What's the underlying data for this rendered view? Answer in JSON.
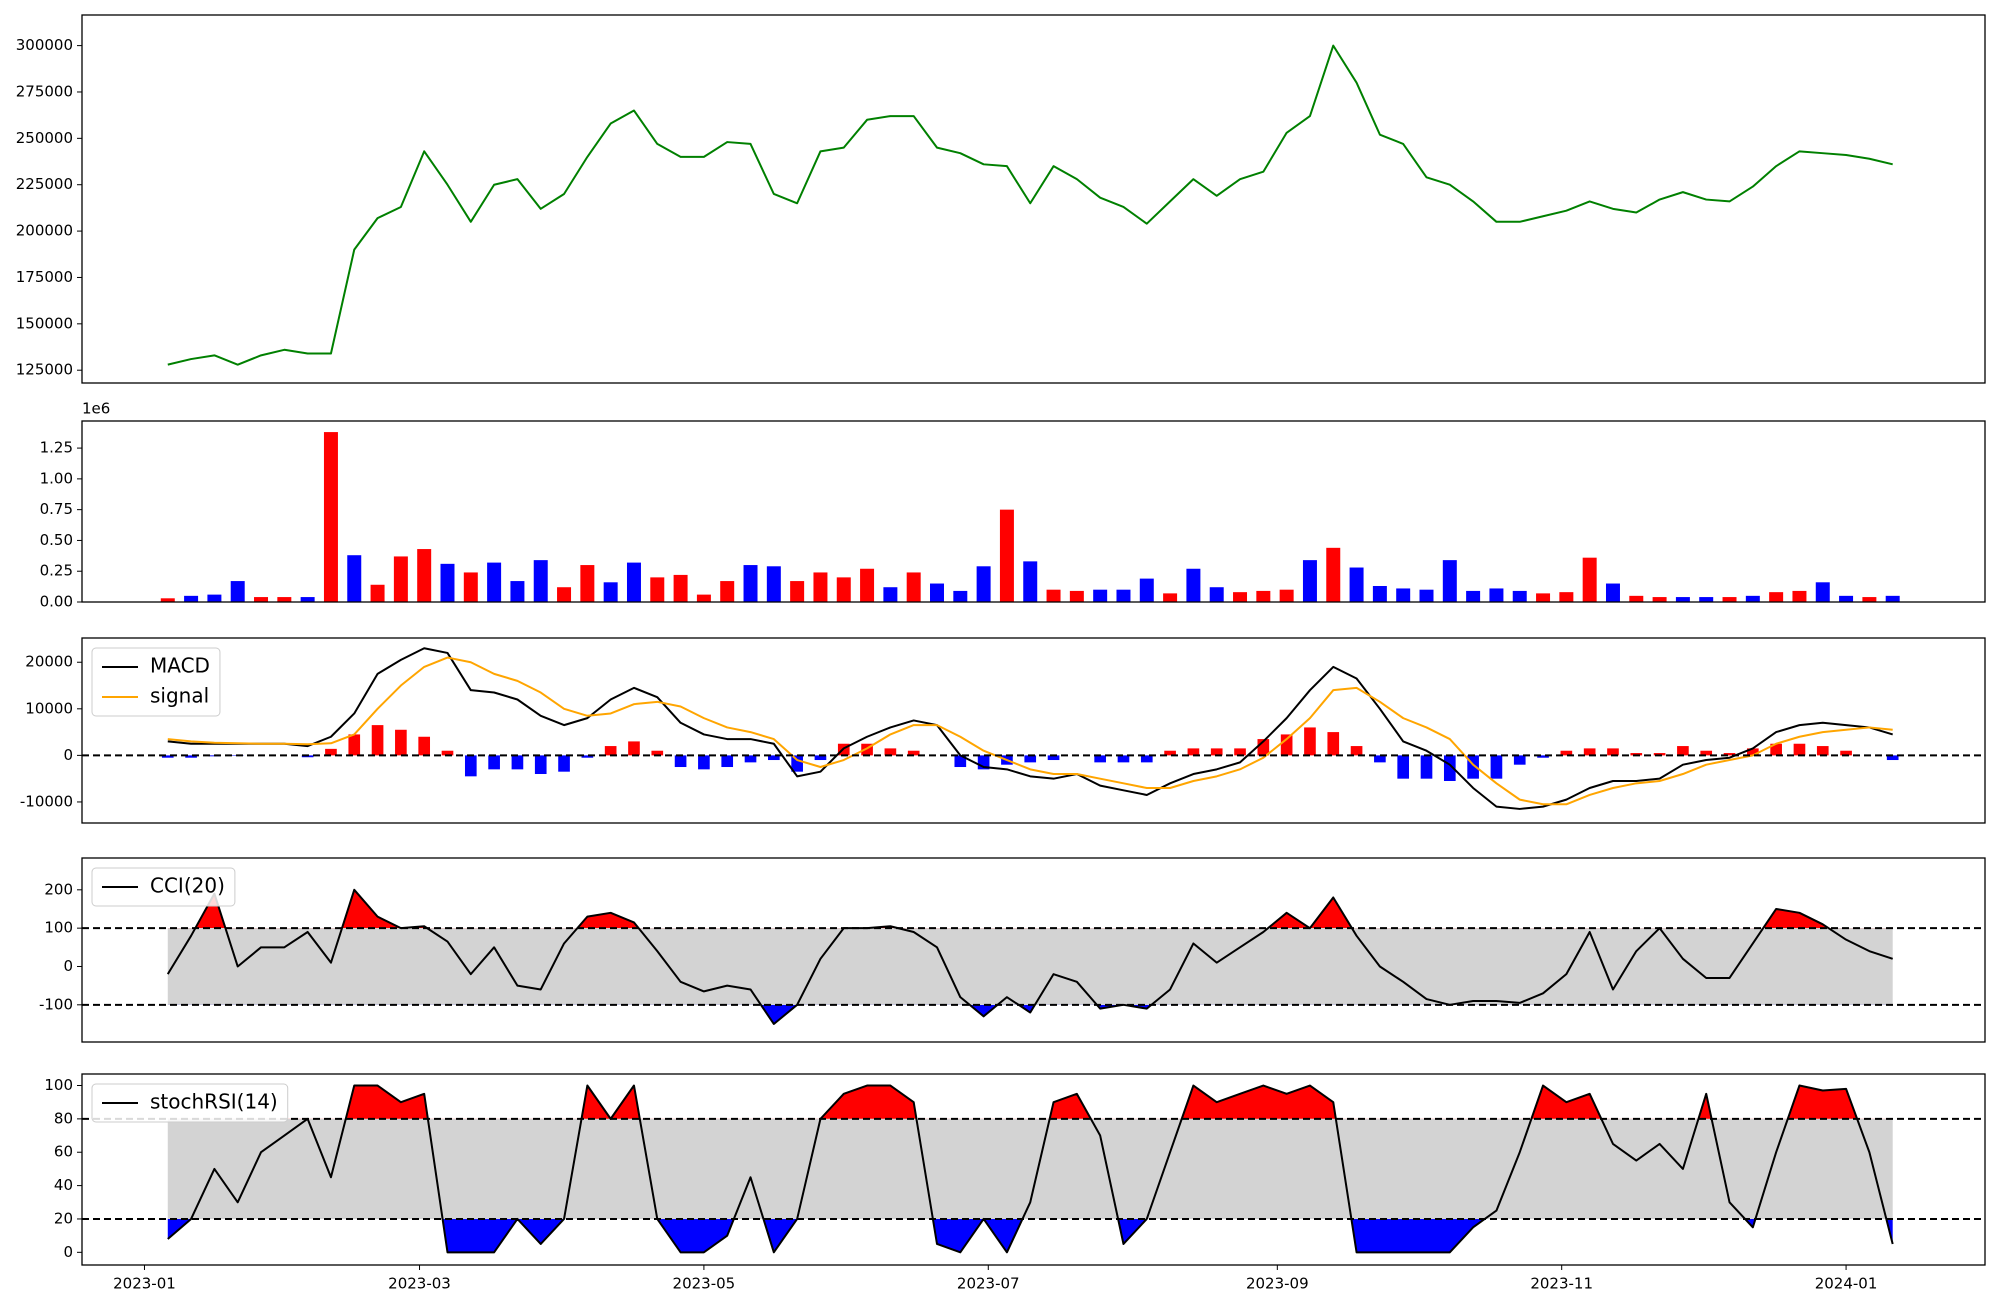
{
  "chart_data": [
    {
      "type": "line",
      "x": [
        5,
        10,
        15,
        20,
        25,
        30,
        35,
        40,
        45,
        50,
        55,
        60,
        65,
        70,
        75,
        80,
        85,
        90,
        95,
        100,
        105,
        110,
        115,
        120,
        125,
        130,
        135,
        140,
        145,
        150,
        155,
        160,
        165,
        170,
        175,
        180,
        185,
        190,
        195,
        200,
        205,
        210,
        215,
        220,
        225,
        230,
        235,
        240,
        245,
        250,
        255,
        260,
        265,
        270,
        275,
        280,
        285,
        290,
        295,
        300,
        305,
        310,
        315,
        320,
        325,
        330,
        335,
        340,
        345,
        350,
        355,
        360,
        365,
        370,
        375
      ],
      "series": [
        {
          "color": "green",
          "values": [
            128000,
            131000,
            133000,
            128000,
            133000,
            136000,
            134000,
            134000,
            190000,
            207000,
            213000,
            243000,
            225000,
            205000,
            225000,
            228000,
            212000,
            220000,
            240000,
            258000,
            265000,
            247000,
            240000,
            240000,
            248000,
            247000,
            220000,
            215000,
            243000,
            245000,
            260000,
            262000,
            262000,
            245000,
            242000,
            236000,
            235000,
            215000,
            235000,
            228000,
            218000,
            213000,
            204000,
            216000,
            228000,
            219000,
            228000,
            232000,
            253000,
            262000,
            300000,
            280000,
            252000,
            247000,
            229000,
            225000,
            216000,
            205000,
            205000,
            208000,
            211000,
            216000,
            212000,
            210000,
            217000,
            221000,
            217000,
            216000,
            224000,
            235000,
            243000,
            242000,
            241000,
            239000,
            236000
          ]
        }
      ],
      "xlim": [
        -13.4,
        394.8
      ],
      "ylim": [
        118100,
        316500
      ],
      "yticks": [
        125000,
        150000,
        175000,
        200000,
        225000,
        250000,
        275000,
        300000
      ]
    },
    {
      "type": "bar",
      "x": [
        5,
        10,
        15,
        20,
        25,
        30,
        35,
        40,
        45,
        50,
        55,
        60,
        65,
        70,
        75,
        80,
        85,
        90,
        95,
        100,
        105,
        110,
        115,
        120,
        125,
        130,
        135,
        140,
        145,
        150,
        155,
        160,
        165,
        170,
        175,
        180,
        185,
        190,
        195,
        200,
        205,
        210,
        215,
        220,
        225,
        230,
        235,
        240,
        245,
        250,
        255,
        260,
        265,
        270,
        275,
        280,
        285,
        290,
        295,
        300,
        305,
        310,
        315,
        320,
        325,
        330,
        335,
        340,
        345,
        350,
        355,
        360,
        365,
        370,
        375
      ],
      "values": [
        0.03,
        0.05,
        0.06,
        0.17,
        0.04,
        0.04,
        0.04,
        1.38,
        0.38,
        0.14,
        0.37,
        0.43,
        0.31,
        0.24,
        0.32,
        0.17,
        0.34,
        0.12,
        0.3,
        0.16,
        0.32,
        0.2,
        0.22,
        0.06,
        0.17,
        0.3,
        0.29,
        0.17,
        0.24,
        0.2,
        0.27,
        0.12,
        0.24,
        0.15,
        0.09,
        0.29,
        0.75,
        0.33,
        0.1,
        0.09,
        0.1,
        0.1,
        0.19,
        0.07,
        0.27,
        0.12,
        0.08,
        0.09,
        0.1,
        0.34,
        0.44,
        0.28,
        0.13,
        0.11,
        0.1,
        0.34,
        0.09,
        0.11,
        0.09,
        0.07,
        0.08,
        0.36,
        0.15,
        0.05,
        0.04,
        0.04,
        0.04,
        0.04,
        0.05,
        0.08,
        0.09,
        0.16,
        0.05,
        0.04,
        0.05
      ],
      "colors": [
        "red",
        "blue",
        "blue",
        "blue",
        "red",
        "red",
        "blue",
        "red",
        "blue",
        "red",
        "red",
        "red",
        "blue",
        "red",
        "blue",
        "blue",
        "blue",
        "red",
        "red",
        "blue",
        "blue",
        "red",
        "red",
        "red",
        "red",
        "blue",
        "blue",
        "red",
        "red",
        "red",
        "red",
        "blue",
        "red",
        "blue",
        "blue",
        "blue",
        "red",
        "blue",
        "red",
        "red",
        "blue",
        "blue",
        "blue",
        "red",
        "blue",
        "blue",
        "red",
        "red",
        "red",
        "blue",
        "red",
        "blue",
        "blue",
        "blue",
        "blue",
        "blue",
        "blue",
        "blue",
        "blue",
        "red",
        "red",
        "red",
        "blue",
        "red",
        "red",
        "blue",
        "blue",
        "red",
        "blue",
        "red",
        "red",
        "blue",
        "blue",
        "red",
        "blue"
      ],
      "offset_label": "1e6",
      "xlim": [
        -13.4,
        394.8
      ],
      "ylim": [
        0,
        1.47
      ],
      "yticks": [
        {
          "value": 0,
          "label": "0.00"
        },
        0.25,
        {
          "value": 0.5,
          "label": "0.50"
        },
        0.75,
        {
          "value": 1,
          "label": "1.00"
        },
        1.25
      ]
    },
    {
      "type": "combo",
      "x": [
        5,
        10,
        15,
        20,
        25,
        30,
        35,
        40,
        45,
        50,
        55,
        60,
        65,
        70,
        75,
        80,
        85,
        90,
        95,
        100,
        105,
        110,
        115,
        120,
        125,
        130,
        135,
        140,
        145,
        150,
        155,
        160,
        165,
        170,
        175,
        180,
        185,
        190,
        195,
        200,
        205,
        210,
        215,
        220,
        225,
        230,
        235,
        240,
        245,
        250,
        255,
        260,
        265,
        270,
        275,
        280,
        285,
        290,
        295,
        300,
        305,
        310,
        315,
        320,
        325,
        330,
        335,
        340,
        345,
        350,
        355,
        360,
        365,
        370,
        375
      ],
      "series": [
        {
          "kind": "bar",
          "pos_color": "red",
          "neg_color": "blue",
          "values": [
            -500,
            -500,
            -200,
            -100,
            0,
            0,
            -400,
            1400,
            4500,
            6500,
            5500,
            4000,
            1000,
            -4500,
            -3000,
            -3000,
            -4000,
            -3500,
            -500,
            2000,
            3000,
            1000,
            -2500,
            -3000,
            -2500,
            -1500,
            -1000,
            -3500,
            -1000,
            2500,
            2500,
            1500,
            1000,
            0,
            -2500,
            -3000,
            -2000,
            -1500,
            -1000,
            0,
            -1500,
            -1500,
            -1500,
            1000,
            1500,
            1500,
            1500,
            3500,
            4500,
            6000,
            5000,
            2000,
            -1500,
            -5000,
            -5000,
            -5500,
            -5000,
            -5000,
            -2000,
            -500,
            1000,
            1500,
            1500,
            500,
            500,
            2000,
            1000,
            500,
            1500,
            2500,
            2500,
            2000,
            1000,
            0,
            -1000
          ]
        },
        {
          "name": "MACD",
          "kind": "line",
          "color": "black",
          "values": [
            3000,
            2500,
            2500,
            2500,
            2500,
            2500,
            2000,
            4000,
            9000,
            17500,
            20500,
            23000,
            22000,
            14000,
            13500,
            12000,
            8500,
            6500,
            8000,
            12000,
            14500,
            12500,
            7000,
            4500,
            3500,
            3500,
            2500,
            -4500,
            -3500,
            1500,
            4000,
            6000,
            7500,
            6500,
            0,
            -2500,
            -3000,
            -4500,
            -5000,
            -4000,
            -6500,
            -7500,
            -8500,
            -6000,
            -4000,
            -3000,
            -1500,
            3000,
            8000,
            14000,
            19000,
            16500,
            10000,
            3000,
            1000,
            -2000,
            -7000,
            -11000,
            -11500,
            -11000,
            -9500,
            -7000,
            -5500,
            -5500,
            -5000,
            -2000,
            -1000,
            -500,
            1500,
            5000,
            6500,
            7000,
            6500,
            6000,
            4500
          ]
        },
        {
          "name": "signal",
          "kind": "line",
          "color": "orange",
          "values": [
            3500,
            3000,
            2700,
            2600,
            2500,
            2500,
            2400,
            2600,
            4500,
            10000,
            15000,
            19000,
            21000,
            20000,
            17500,
            16000,
            13500,
            10000,
            8500,
            9000,
            11000,
            11500,
            10500,
            8000,
            6000,
            5000,
            3500,
            -1000,
            -2500,
            -1000,
            1500,
            4500,
            6500,
            6500,
            4000,
            1000,
            -1000,
            -3000,
            -4000,
            -4000,
            -5000,
            -6000,
            -7000,
            -7000,
            -5500,
            -4500,
            -3000,
            -500,
            3500,
            8000,
            14000,
            14500,
            11500,
            8000,
            6000,
            3500,
            -2000,
            -6000,
            -9500,
            -10500,
            -10500,
            -8500,
            -7000,
            -6000,
            -5500,
            -4000,
            -2000,
            -1000,
            0,
            2500,
            4000,
            5000,
            5500,
            6000,
            5500
          ]
        }
      ],
      "hlines": [
        0
      ],
      "legend": "upper left",
      "xlim": [
        -13.4,
        394.8
      ],
      "ylim": [
        -14520,
        25205
      ],
      "yticks": [
        -10000,
        0,
        10000,
        20000
      ]
    },
    {
      "type": "band",
      "x": [
        5,
        10,
        15,
        20,
        25,
        30,
        35,
        40,
        45,
        50,
        55,
        60,
        65,
        70,
        75,
        80,
        85,
        90,
        95,
        100,
        105,
        110,
        115,
        120,
        125,
        130,
        135,
        140,
        145,
        150,
        155,
        160,
        165,
        170,
        175,
        180,
        185,
        190,
        195,
        200,
        205,
        210,
        215,
        220,
        225,
        230,
        235,
        240,
        245,
        250,
        255,
        260,
        265,
        270,
        275,
        280,
        285,
        290,
        295,
        300,
        305,
        310,
        315,
        320,
        325,
        330,
        335,
        340,
        345,
        350,
        355,
        360,
        365,
        370,
        375
      ],
      "series": [
        {
          "name": "CCI(20)",
          "color": "black",
          "values": [
            -20,
            80,
            190,
            0,
            50,
            50,
            90,
            10,
            200,
            130,
            100,
            105,
            65,
            -20,
            50,
            -50,
            -60,
            60,
            130,
            140,
            115,
            40,
            -40,
            -65,
            -50,
            -60,
            -150,
            -100,
            20,
            100,
            100,
            105,
            90,
            50,
            -80,
            -130,
            -80,
            -120,
            -20,
            -40,
            -110,
            -100,
            -110,
            -60,
            60,
            10,
            50,
            90,
            140,
            100,
            180,
            80,
            0,
            -40,
            -85,
            -100,
            -90,
            -90,
            -95,
            -70,
            -20,
            90,
            -60,
            40,
            100,
            20,
            -30,
            -30,
            60,
            150,
            140,
            110,
            70,
            40,
            20
          ]
        }
      ],
      "bounds": [
        -100,
        100
      ],
      "band_color": "lightgray",
      "upper_color": "red",
      "lower_color": "blue",
      "legend": "upper left",
      "xlim": [
        -13.4,
        394.8
      ],
      "ylim": [
        -197,
        283
      ],
      "yticks": [
        -100,
        0,
        100,
        200
      ]
    },
    {
      "type": "band",
      "x": [
        5,
        10,
        15,
        20,
        25,
        30,
        35,
        40,
        45,
        50,
        55,
        60,
        65,
        70,
        75,
        80,
        85,
        90,
        95,
        100,
        105,
        110,
        115,
        120,
        125,
        130,
        135,
        140,
        145,
        150,
        155,
        160,
        165,
        170,
        175,
        180,
        185,
        190,
        195,
        200,
        205,
        210,
        215,
        220,
        225,
        230,
        235,
        240,
        245,
        250,
        255,
        260,
        265,
        270,
        275,
        280,
        285,
        290,
        295,
        300,
        305,
        310,
        315,
        320,
        325,
        330,
        335,
        340,
        345,
        350,
        355,
        360,
        365,
        370,
        375
      ],
      "series": [
        {
          "name": "stochRSI(14)",
          "color": "black",
          "values": [
            8,
            20,
            50,
            30,
            60,
            70,
            80,
            45,
            100,
            100,
            90,
            95,
            0,
            0,
            0,
            20,
            5,
            20,
            100,
            80,
            100,
            20,
            0,
            0,
            10,
            45,
            0,
            20,
            80,
            95,
            100,
            100,
            90,
            5,
            0,
            20,
            0,
            30,
            90,
            95,
            70,
            5,
            20,
            60,
            100,
            90,
            95,
            100,
            95,
            100,
            90,
            0,
            0,
            0,
            0,
            0,
            15,
            25,
            60,
            100,
            90,
            95,
            65,
            55,
            65,
            50,
            95,
            30,
            15,
            60,
            100,
            97,
            98,
            60,
            5
          ]
        }
      ],
      "bounds": [
        20,
        80
      ],
      "band_color": "lightgray",
      "upper_color": "red",
      "lower_color": "blue",
      "legend": "upper left",
      "xlim": [
        -13.4,
        394.8
      ],
      "ylim": [
        -7.6,
        106.9
      ],
      "yticks": [
        0,
        20,
        40,
        60,
        80,
        100
      ],
      "xticks": [
        {
          "value": 0,
          "label": "2023-01"
        },
        {
          "value": 59,
          "label": "2023-03"
        },
        {
          "value": 120,
          "label": "2023-05"
        },
        {
          "value": 181,
          "label": "2023-07"
        },
        {
          "value": 243,
          "label": "2023-09"
        },
        {
          "value": 304,
          "label": "2023-11"
        },
        {
          "value": 365,
          "label": "2024-01"
        }
      ]
    }
  ]
}
